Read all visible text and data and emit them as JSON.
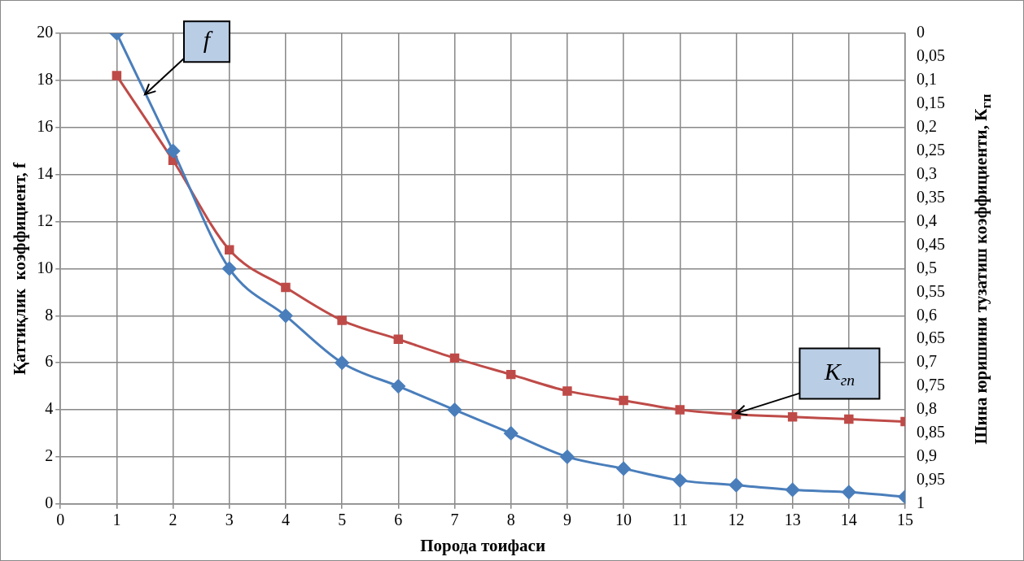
{
  "chart_data": {
    "type": "line",
    "xlabel": "Порода тоифаси",
    "ylabel": "Қаттиқлик  коэффициент, f",
    "y2label": "Шина юришини тузатиш коэффициенти, К$_{гп}$",
    "x": [
      1,
      2,
      3,
      4,
      5,
      6,
      7,
      8,
      9,
      10,
      11,
      12,
      13,
      14,
      15
    ],
    "series": [
      {
        "color": "#4a7ebb",
        "marker": "diamond",
        "values": [
          20,
          15,
          10,
          8,
          6,
          5,
          4,
          3,
          2,
          1.5,
          1,
          0.8,
          0.6,
          0.5,
          0.3
        ]
      },
      {
        "color": "#be4b48",
        "marker": "square",
        "axis": "y2",
        "values": [
          0.09,
          0.27,
          0.46,
          0.54,
          0.61,
          0.65,
          0.69,
          0.725,
          0.76,
          0.78,
          0.8,
          0.81,
          0.815,
          0.82,
          0.825
        ]
      }
    ],
    "xlim": [
      0,
      15
    ],
    "xticks": [
      0,
      1,
      2,
      3,
      4,
      5,
      6,
      7,
      8,
      9,
      10,
      11,
      12,
      13,
      14,
      15
    ],
    "ylim": [
      0,
      20
    ],
    "yticks": [
      0,
      2,
      4,
      6,
      8,
      10,
      12,
      14,
      16,
      18,
      20
    ],
    "y2lim": [
      1,
      0
    ],
    "y2ticks": [
      {
        "value": 0,
        "label": "0"
      },
      {
        "value": 0.05,
        "label": "0,05"
      },
      {
        "value": 0.1,
        "label": "0,1"
      },
      {
        "value": 0.15,
        "label": "0,15"
      },
      {
        "value": 0.2,
        "label": "0,2"
      },
      {
        "value": 0.25,
        "label": "0,25"
      },
      {
        "value": 0.3,
        "label": "0,3"
      },
      {
        "value": 0.35,
        "label": "0,35"
      },
      {
        "value": 0.4,
        "label": "0,4"
      },
      {
        "value": 0.45,
        "label": "0,45"
      },
      {
        "value": 0.5,
        "label": "0,5"
      },
      {
        "value": 0.55,
        "label": "0,55"
      },
      {
        "value": 0.6,
        "label": "0,6"
      },
      {
        "value": 0.65,
        "label": "0,65"
      },
      {
        "value": 0.7,
        "label": "0,7"
      },
      {
        "value": 0.75,
        "label": "0,75"
      },
      {
        "value": 0.8,
        "label": "0,8"
      },
      {
        "value": 0.85,
        "label": "0,85"
      },
      {
        "value": 0.9,
        "label": "0,9"
      },
      {
        "value": 0.95,
        "label": "0,95"
      },
      {
        "value": 1,
        "label": "1"
      }
    ],
    "annotations": [
      {
        "text": "f",
        "x": 1.5,
        "y": 17.4
      },
      {
        "text": "K$_{гп}$",
        "x": 12,
        "y": 3.85
      }
    ],
    "grid": true,
    "legend": false,
    "line_style": "solid"
  }
}
